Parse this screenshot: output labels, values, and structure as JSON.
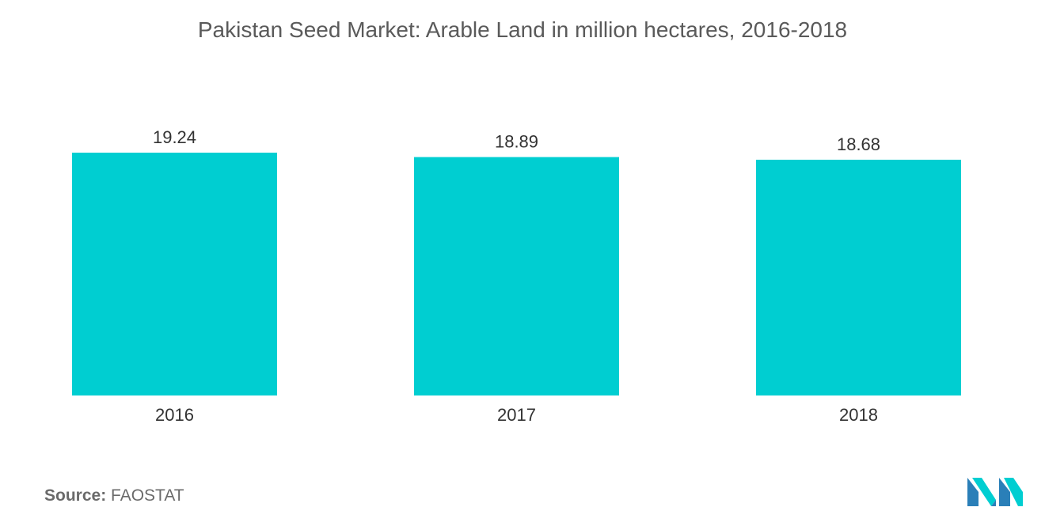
{
  "chart_data": {
    "type": "bar",
    "title": "Pakistan Seed Market: Arable Land in million hectares, 2016-2018",
    "categories": [
      "2016",
      "2017",
      "2018"
    ],
    "values": [
      19.24,
      18.89,
      18.68
    ],
    "value_labels": [
      "19.24",
      "18.89",
      "18.68"
    ],
    "xlabel": "",
    "ylabel": "",
    "ylim": [
      0,
      19.24
    ],
    "grid": false,
    "legend": "none",
    "bar_color": "#00CED1"
  },
  "footer": {
    "source_label": "Source:",
    "source_value": "FAOSTAT"
  },
  "logo": {
    "icon": "mordor-intelligence-logo-icon",
    "colors": [
      "#2a7fb8",
      "#00CED1"
    ]
  }
}
